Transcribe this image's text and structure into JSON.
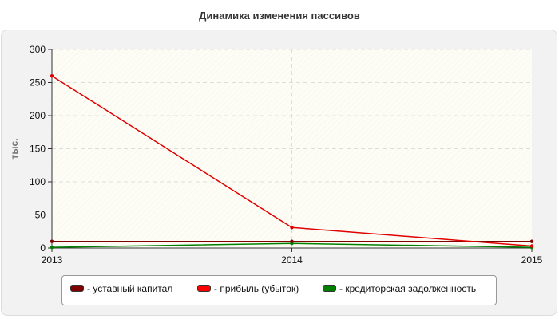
{
  "chart_data": {
    "type": "line",
    "title": "Динамика изменения пассивов",
    "ylabel": "тыс.",
    "xlabel": "",
    "x": [
      "2013",
      "2014",
      "2015"
    ],
    "ylim": [
      0,
      300
    ],
    "yticks": [
      "0",
      "50",
      "100",
      "150",
      "200",
      "250",
      "300"
    ],
    "grid": true,
    "legend_position": "bottom",
    "series": [
      {
        "name": "- уставный капитал",
        "values": [
          10,
          10,
          10
        ],
        "color": "#800000"
      },
      {
        "name": "- прибыль (убыток)",
        "values": [
          260,
          31,
          3
        ],
        "color": "#e00000"
      },
      {
        "name": "- кредиторская задолженность",
        "values": [
          1,
          7,
          1
        ],
        "color": "#008000"
      }
    ]
  }
}
